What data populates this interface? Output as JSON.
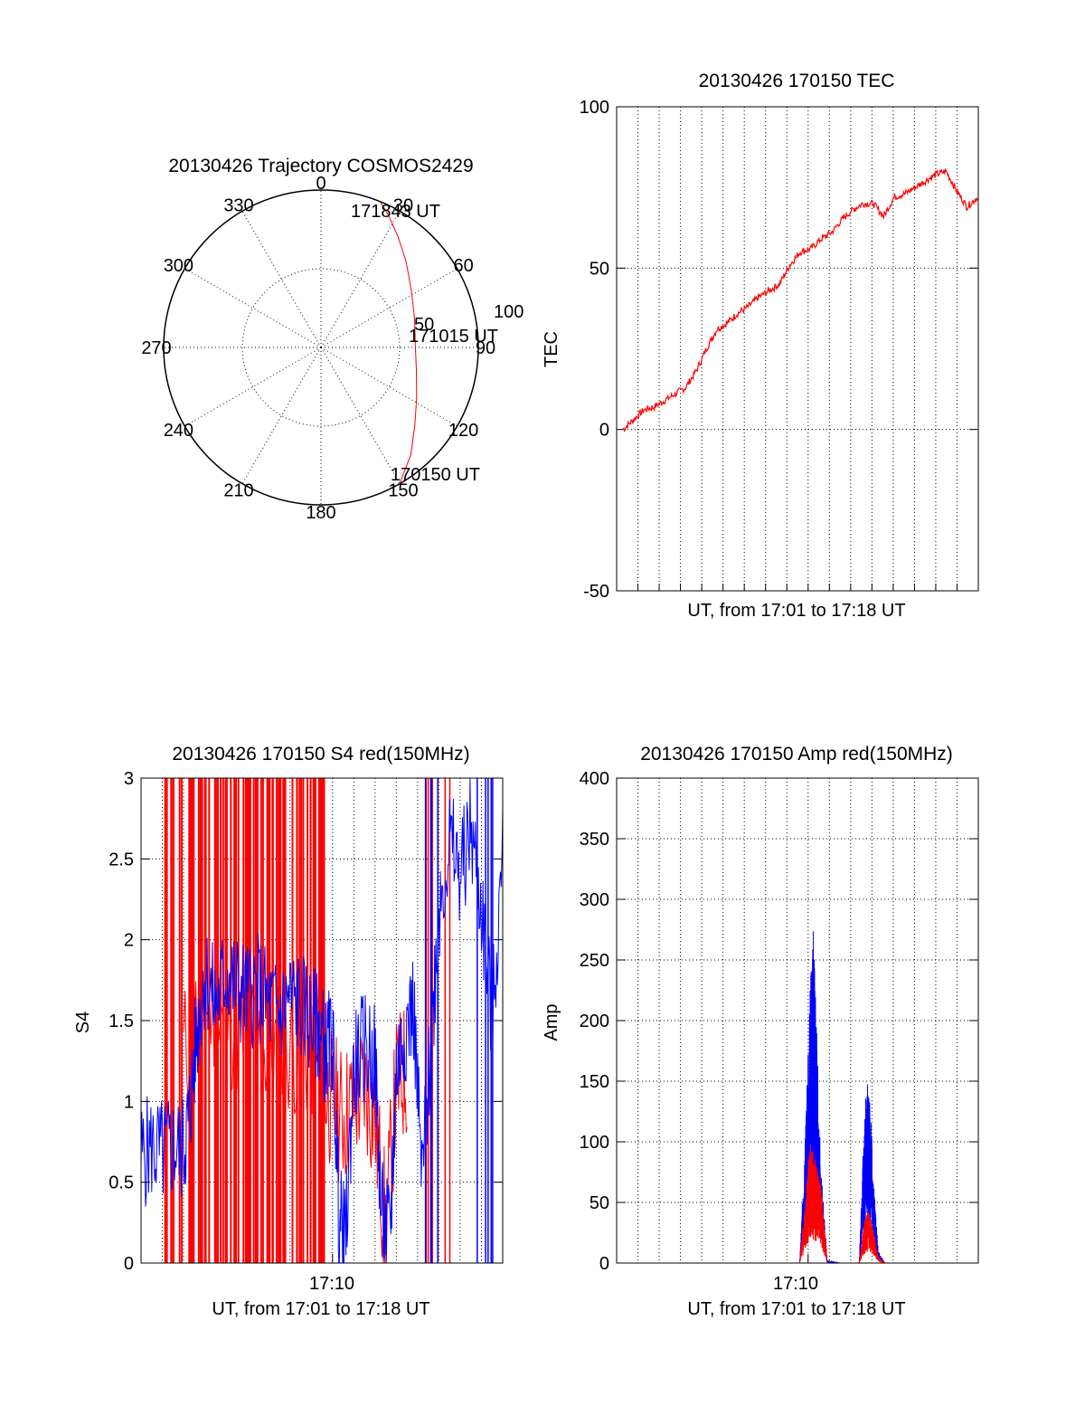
{
  "colors": {
    "red": "#ff0000",
    "blue": "#0000ff",
    "axis": "#000000"
  },
  "chart_data": [
    {
      "id": "polar",
      "type": "polar",
      "title": "20130426 Trajectory COSMOS2429",
      "azimuth_ticks": [
        "0",
        "30",
        "60",
        "90",
        "120",
        "150",
        "180",
        "210",
        "240",
        "270",
        "300",
        "330"
      ],
      "radius_ticks": [
        "50",
        "100"
      ],
      "start_label": "170150 UT",
      "mid_label": "171015 UT",
      "end_label": "171843 UT",
      "trajectory": [
        {
          "az": 150,
          "el": 0
        },
        {
          "az": 140,
          "el": 10
        },
        {
          "az": 130,
          "el": 20
        },
        {
          "az": 118,
          "el": 28
        },
        {
          "az": 103,
          "el": 34
        },
        {
          "az": 88,
          "el": 36
        },
        {
          "az": 73,
          "el": 34
        },
        {
          "az": 58,
          "el": 29
        },
        {
          "az": 45,
          "el": 21
        },
        {
          "az": 35,
          "el": 13
        },
        {
          "az": 27,
          "el": 5
        },
        {
          "az": 22,
          "el": 0
        }
      ]
    },
    {
      "id": "tec",
      "type": "line",
      "title": "20130426 170150 TEC",
      "xlabel": "UT, from 17:01 to 17:18 UT",
      "ylabel": "TEC",
      "ylim": [
        -50,
        100
      ],
      "yticks": [
        "-50",
        "0",
        "50",
        "100"
      ],
      "xlim": [
        0,
        17
      ],
      "series": [
        {
          "color": "red",
          "x": [
            0,
            0.5,
            1,
            1.5,
            2,
            2.5,
            3,
            3.5,
            4,
            4.5,
            5,
            5.5,
            6,
            6.5,
            7,
            7.5,
            8,
            8.5,
            9,
            9.5,
            10,
            10.5,
            11,
            11.5,
            12,
            12.5,
            13,
            13.5,
            14,
            14.5,
            15,
            15.5,
            16,
            16.5,
            17
          ],
          "y": [
            0,
            3,
            6,
            7,
            9,
            11,
            13,
            18,
            25,
            31,
            33,
            36,
            38,
            41,
            43,
            45,
            51,
            55,
            56,
            59,
            61,
            65,
            68,
            70,
            70,
            66,
            72,
            73,
            75,
            77,
            79,
            80,
            74,
            69,
            72
          ]
        }
      ]
    },
    {
      "id": "s4",
      "type": "line",
      "title": "20130426 170150 S4 red(150MHz)",
      "xlabel": "UT, from 17:01 to 17:18 UT",
      "ylabel": "S4",
      "ylim": [
        0,
        3
      ],
      "yticks": [
        "0",
        "0.5",
        "1",
        "1.5",
        "2",
        "2.5",
        "3"
      ],
      "xlim": [
        0,
        17
      ],
      "xtick_label": "17:10",
      "xtick_value": 9,
      "series": [
        {
          "color": "blue",
          "x": [
            0,
            0.5,
            1,
            1.5,
            2,
            2.3,
            2.6,
            3,
            3.5,
            4,
            4.5,
            5,
            5.5,
            6,
            6.5,
            7,
            7.5,
            8,
            8.4,
            8.7,
            9,
            9.3,
            9.6,
            10,
            10.5,
            11,
            11.3,
            11.7,
            12,
            12.4,
            12.8,
            13.2,
            13.6,
            14,
            14.5,
            15,
            15.5,
            16,
            16.5,
            17
          ],
          "y": [
            0.66,
            0.72,
            0.68,
            0.72,
            0.7,
            0.95,
            1.4,
            1.8,
            1.6,
            1.8,
            1.7,
            1.65,
            1.7,
            1.6,
            1.55,
            1.65,
            1.6,
            1.5,
            1.45,
            1.3,
            1.4,
            0.3,
            0.12,
            1.2,
            1.35,
            1.25,
            0.3,
            0.15,
            1.2,
            1.45,
            1.6,
            0.5,
            1.3,
            2.2,
            2.6,
            2.4,
            2.7,
            2.2,
            1.5,
            2.5
          ]
        },
        {
          "color": "red",
          "x": [
            2,
            3,
            4,
            5,
            6,
            7,
            8,
            8.5,
            9,
            9.5,
            10,
            10.5,
            11,
            11.5,
            12,
            12.5
          ],
          "y": [
            1.3,
            1.6,
            1.5,
            1.4,
            1.3,
            1.35,
            1.3,
            1.1,
            1.0,
            0.9,
            1.0,
            1.1,
            0.9,
            0.2,
            1.1,
            1.2
          ]
        }
      ]
    },
    {
      "id": "amp",
      "type": "line",
      "title": "20130426 170150 Amp red(150MHz)",
      "xlabel": "UT, from 17:01 to 17:18 UT",
      "ylabel": "Amp",
      "ylim": [
        0,
        400
      ],
      "yticks": [
        "0",
        "50",
        "100",
        "150",
        "200",
        "250",
        "300",
        "350",
        "400"
      ],
      "xlim": [
        0,
        17
      ],
      "xtick_label": "17:10",
      "xtick_value": 9,
      "series": [
        {
          "color": "blue",
          "x": [
            0,
            8.6,
            8.9,
            9.1,
            9.25,
            9.4,
            9.6,
            9.9,
            10.5,
            11.4,
            11.6,
            11.75,
            11.9,
            12.1,
            12.3,
            12.6,
            17
          ],
          "y": [
            0,
            0,
            120,
            230,
            280,
            200,
            80,
            2,
            0,
            0,
            100,
            160,
            140,
            60,
            10,
            0,
            0
          ]
        },
        {
          "color": "red",
          "x": [
            0,
            8.6,
            8.9,
            9.1,
            9.25,
            9.45,
            9.65,
            9.9,
            10.5,
            11.4,
            11.6,
            11.75,
            11.9,
            12.1,
            12.3,
            12.6,
            17
          ],
          "y": [
            0,
            0,
            60,
            100,
            90,
            80,
            55,
            0,
            0,
            0,
            30,
            45,
            40,
            25,
            5,
            0,
            0
          ]
        }
      ]
    }
  ]
}
